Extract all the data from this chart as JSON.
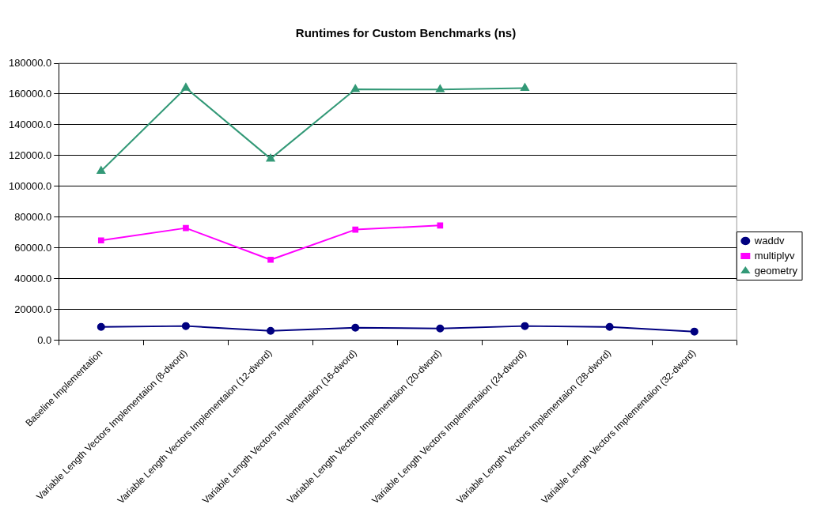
{
  "chart_data": {
    "type": "line",
    "title": "Runtimes for Custom Benchmarks (ns)",
    "categories": [
      "Baseline Implementation",
      "Variable Length Vectors Implementaion (8-dword)",
      "Variable Length Vectors Implementaion (12-dword)",
      "Variable Length Vectors Implementaion (16-dword)",
      "Variable Length Vectors Implementaion (20-dword)",
      "Variable Length Vectors Implementaion (24-dword)",
      "Variable Length Vectors Implementaion (28-dword)",
      "Variable Length Vectors Implementaion (32-dword)"
    ],
    "series": [
      {
        "name": "waddv",
        "color": "#000080",
        "marker": "circle",
        "values": [
          8800,
          9400,
          6300,
          8300,
          7800,
          9400,
          8800,
          5800
        ]
      },
      {
        "name": "multiplyv",
        "color": "#ff00ff",
        "marker": "square",
        "values": [
          65000,
          73000,
          52400,
          72000,
          74700,
          null,
          null,
          null
        ]
      },
      {
        "name": "geometry",
        "color": "#339977",
        "marker": "triangle",
        "values": [
          110000,
          164000,
          118000,
          163100,
          162900,
          163800,
          null,
          null
        ]
      }
    ],
    "ylim": [
      0,
      180000
    ],
    "yticks": [
      {
        "value": 0,
        "label": "0.0"
      },
      {
        "value": 20000,
        "label": "20000.0"
      },
      {
        "value": 40000,
        "label": "40000.0"
      },
      {
        "value": 60000,
        "label": "60000.0"
      },
      {
        "value": 80000,
        "label": "80000.0"
      },
      {
        "value": 100000,
        "label": "100000.0"
      },
      {
        "value": 120000,
        "label": "120000.0"
      },
      {
        "value": 140000,
        "label": "140000.0"
      },
      {
        "value": 160000,
        "label": "160000.0"
      },
      {
        "value": 180000,
        "label": "180000.0"
      }
    ],
    "grid": "y",
    "legend": "right",
    "line_style": "solid"
  }
}
